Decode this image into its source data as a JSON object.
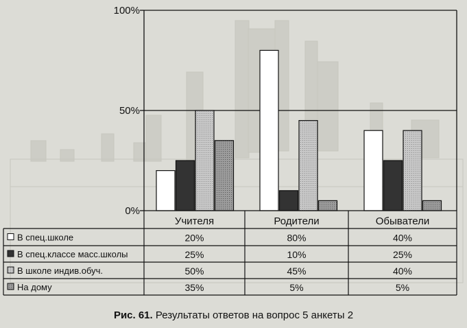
{
  "chart_data": {
    "type": "bar",
    "categories": [
      "Учителя",
      "Родители",
      "Обыватели"
    ],
    "series": [
      {
        "name": "В спец.школе",
        "values": [
          20,
          80,
          40
        ],
        "labels": [
          "20%",
          "80%",
          "40%"
        ],
        "color": "#ffffff"
      },
      {
        "name": "В спец.классе масс.школы",
        "values": [
          25,
          10,
          25
        ],
        "labels": [
          "25%",
          "10%",
          "25%"
        ],
        "color": "#333333"
      },
      {
        "name": "В школе индив.обуч.",
        "values": [
          50,
          45,
          40
        ],
        "labels": [
          "50%",
          "45%",
          "40%"
        ],
        "color": "#c8c8c8"
      },
      {
        "name": "На дому",
        "values": [
          35,
          5,
          5
        ],
        "labels": [
          "35%",
          "5%",
          "5%"
        ],
        "color": "#9c9c9c"
      }
    ],
    "y_ticks": [
      "0%",
      "50%",
      "100%"
    ],
    "ylim": [
      0,
      100
    ],
    "legend_placement": "data-table-left",
    "grid": true
  },
  "caption": {
    "number": "Рис. 61.",
    "text": "Результаты ответов на вопрос 5 анкеты 2"
  },
  "colors": {
    "background": "#dcdcd6",
    "axis": "#111111",
    "ghost": "#c4c4bc"
  }
}
